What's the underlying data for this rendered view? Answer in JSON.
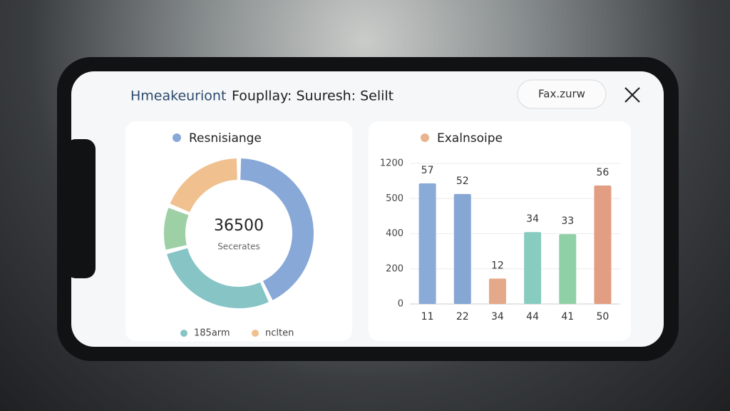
{
  "header": {
    "title_lead": "Hmeakeuriont",
    "title_rest": "Foupllay: Suuresh: Selilt",
    "button": "Fax.zurw"
  },
  "cards": [
    {
      "chart_data": {
        "type": "donut",
        "title": "Resnisiange",
        "center_value": "36500",
        "center_label": "Secerates",
        "values": [
          43,
          28,
          10,
          19
        ],
        "colors": [
          "#88a8d8",
          "#86c4c6",
          "#9ed0a6",
          "#f0c08e"
        ],
        "legend": [
          {
            "name": "185arm",
            "color": "#86c4c6"
          },
          {
            "name": "nclten",
            "color": "#f0c08e"
          }
        ]
      }
    },
    {
      "chart_data": {
        "type": "bar",
        "title": "Exalnsoipe",
        "title_color": "#e8b48e",
        "categories": [
          "11",
          "22",
          "34",
          "44",
          "41",
          "50"
        ],
        "values": [
          57,
          52,
          12,
          34,
          33,
          56
        ],
        "colors": [
          "#8aaad8",
          "#86a6d4",
          "#e4a98a",
          "#88ccc0",
          "#90d0a6",
          "#e29e82"
        ],
        "y_axis_labels": [
          "1200",
          "500",
          "400",
          "200",
          "0"
        ],
        "grid": true
      }
    }
  ]
}
